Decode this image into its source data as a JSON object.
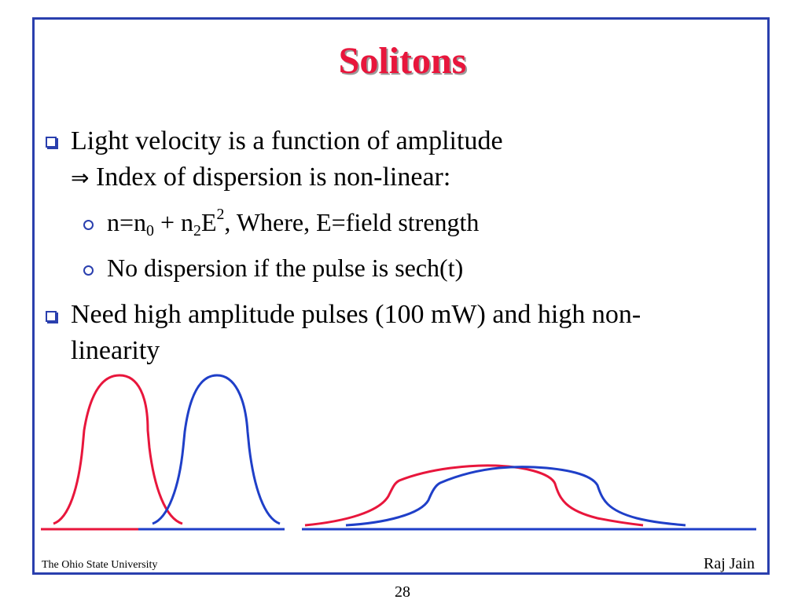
{
  "slide": {
    "title": "Solitons",
    "bullets": {
      "b1_line1": "Light velocity is a function of amplitude",
      "b1_arrow": "⇒",
      "b1_line2": " Index of dispersion is non-linear:",
      "sub1": {
        "n": "n=n",
        "n_sub": "0",
        "plus": " + n",
        "n2_sub": "2",
        "e": "E",
        "e_sup": "2",
        "rest": ", Where, E=field strength"
      },
      "sub2": "No dispersion if the pulse  is sech(t)",
      "b2_line1": "Need high amplitude pulses (100 mW) and high non-",
      "b2_line2": "linearity"
    },
    "footer": {
      "left": "The Ohio State University",
      "right": "Raj Jain",
      "page_number": "28"
    },
    "colors": {
      "frame": "#2a3fae",
      "title": "#e8163c",
      "pulse_red": "#e8163c",
      "pulse_blue": "#1f3fc8"
    }
  }
}
